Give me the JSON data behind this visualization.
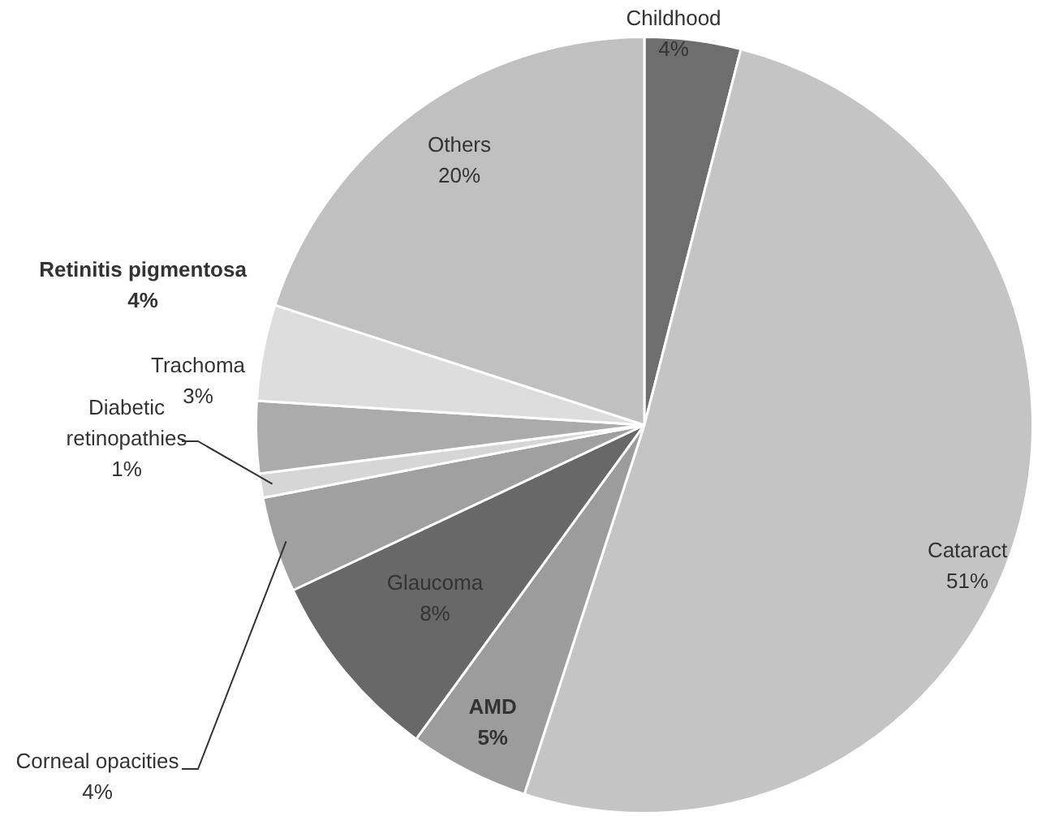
{
  "chart_data": {
    "type": "pie",
    "categories": [
      "Childhood",
      "Cataract",
      "AMD",
      "Glaucoma",
      "Corneal opacities",
      "Diabetic retinopathies",
      "Trachoma",
      "Retinitis pigmentosa",
      "Others"
    ],
    "values": [
      4,
      51,
      5,
      8,
      4,
      1,
      3,
      4,
      20
    ],
    "value_labels": [
      "4%",
      "51%",
      "5%",
      "8%",
      "4%",
      "1%",
      "3%",
      "4%",
      "20%"
    ],
    "colors": [
      "#6e6e6e",
      "#c4c4c4",
      "#9c9c9c",
      "#686868",
      "#a0a0a0",
      "#d6d6d6",
      "#ababab",
      "#dddddd",
      "#c0c0c0"
    ],
    "legend": false
  }
}
